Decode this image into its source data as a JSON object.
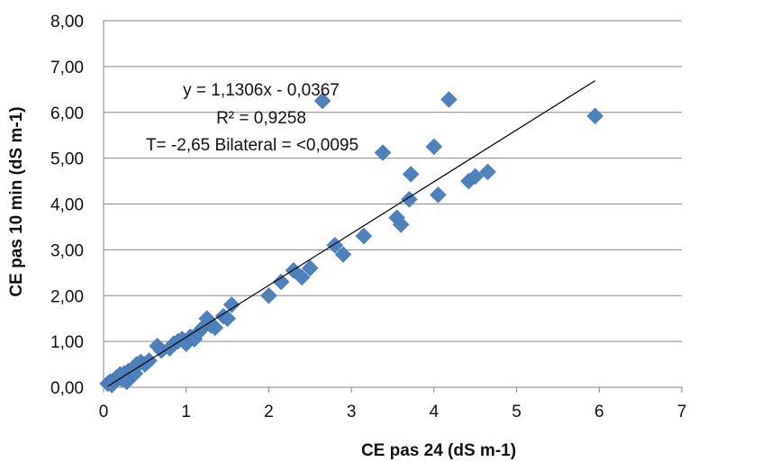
{
  "chart_data": {
    "type": "scatter",
    "xlabel": "CE pas 24 (dS m-1)",
    "ylabel": "CE pas 10 min (dS m-1)",
    "xlim": [
      0,
      7
    ],
    "ylim": [
      0,
      8
    ],
    "x_ticks": [
      "0",
      "1",
      "2",
      "3",
      "4",
      "5",
      "6",
      "7"
    ],
    "y_ticks": [
      "0,00",
      "1,00",
      "2,00",
      "3,00",
      "4,00",
      "5,00",
      "6,00",
      "7,00",
      "8,00"
    ],
    "grid": "horizontal",
    "marker": "diamond",
    "marker_color": "#4F81BD",
    "trendline": {
      "slope": 1.1306,
      "intercept": -0.0367,
      "x_range": [
        0.05,
        5.95
      ],
      "color": "#000000"
    },
    "annotations": [
      "y = 1,1306x - 0,0367",
      "R² = 0,9258",
      "T= -2,65 Bilateral = <0,0095"
    ],
    "points": [
      [
        0.05,
        0.08
      ],
      [
        0.08,
        0.12
      ],
      [
        0.1,
        0.05
      ],
      [
        0.12,
        0.15
      ],
      [
        0.15,
        0.2
      ],
      [
        0.18,
        0.22
      ],
      [
        0.2,
        0.28
      ],
      [
        0.22,
        0.18
      ],
      [
        0.25,
        0.3
      ],
      [
        0.28,
        0.12
      ],
      [
        0.3,
        0.35
      ],
      [
        0.32,
        0.25
      ],
      [
        0.35,
        0.4
      ],
      [
        0.38,
        0.3
      ],
      [
        0.4,
        0.5
      ],
      [
        0.45,
        0.55
      ],
      [
        0.5,
        0.5
      ],
      [
        0.55,
        0.58
      ],
      [
        0.65,
        0.9
      ],
      [
        0.7,
        0.8
      ],
      [
        0.8,
        0.85
      ],
      [
        0.85,
        0.95
      ],
      [
        0.9,
        1.0
      ],
      [
        0.95,
        1.05
      ],
      [
        1.0,
        0.95
      ],
      [
        1.05,
        1.1
      ],
      [
        1.1,
        1.05
      ],
      [
        1.15,
        1.2
      ],
      [
        1.2,
        1.3
      ],
      [
        1.25,
        1.5
      ],
      [
        1.3,
        1.35
      ],
      [
        1.35,
        1.3
      ],
      [
        1.45,
        1.55
      ],
      [
        1.5,
        1.5
      ],
      [
        1.55,
        1.8
      ],
      [
        2.0,
        2.0
      ],
      [
        2.15,
        2.3
      ],
      [
        2.3,
        2.55
      ],
      [
        2.4,
        2.4
      ],
      [
        2.5,
        2.6
      ],
      [
        2.65,
        6.25
      ],
      [
        2.8,
        3.1
      ],
      [
        2.9,
        2.9
      ],
      [
        3.15,
        3.3
      ],
      [
        3.38,
        5.12
      ],
      [
        3.55,
        3.7
      ],
      [
        3.6,
        3.55
      ],
      [
        3.7,
        4.1
      ],
      [
        3.72,
        4.65
      ],
      [
        4.0,
        5.25
      ],
      [
        4.05,
        4.2
      ],
      [
        4.18,
        6.28
      ],
      [
        4.42,
        4.5
      ],
      [
        4.5,
        4.6
      ],
      [
        4.65,
        4.7
      ],
      [
        5.95,
        5.92
      ]
    ]
  }
}
